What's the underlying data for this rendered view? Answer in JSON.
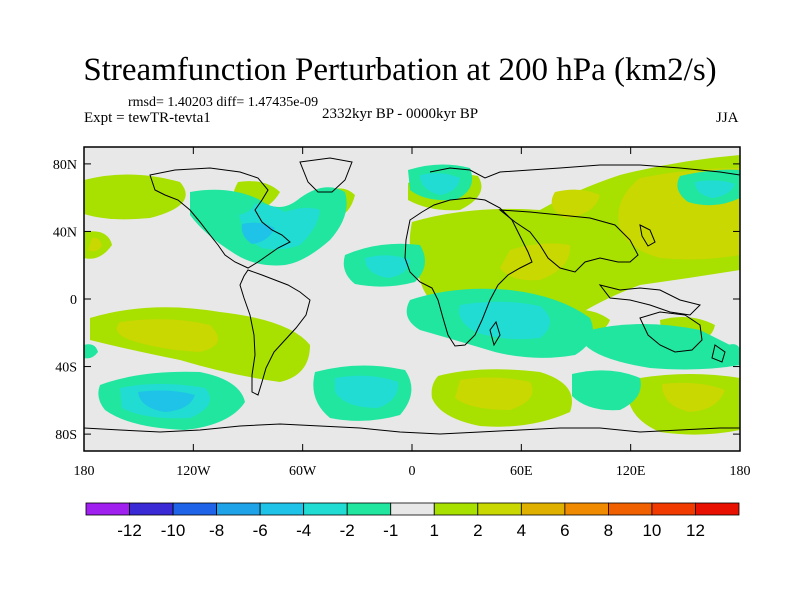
{
  "title": "Streamfunction Perturbation at 200 hPa (km2/s)",
  "stats": "rmsd= 1.40203 diff= 1.47435e-09",
  "experiment": "Expt = tewTR-tevta1",
  "period": "2332kyr BP - 0000kyr BP",
  "season": "JJA",
  "axes": {
    "lat_labels": [
      "80N",
      "40N",
      "0",
      "40S",
      "80S"
    ],
    "lat_values": [
      80,
      40,
      0,
      -40,
      -80
    ],
    "lon_labels": [
      "180",
      "120W",
      "60W",
      "0",
      "60E",
      "120E",
      "180"
    ],
    "lon_values": [
      -180,
      -120,
      -60,
      0,
      60,
      120,
      180
    ]
  },
  "colorbar": {
    "labels": [
      "-12",
      "-10",
      "-8",
      "-6",
      "-4",
      "-2",
      "-1",
      "1",
      "2",
      "4",
      "6",
      "8",
      "10",
      "12"
    ],
    "colors": [
      "#a020f0",
      "#3a2ad6",
      "#1f63e8",
      "#1fa3e8",
      "#1fc3e8",
      "#20dcd2",
      "#20e6a0",
      "#e8e8e8",
      "#a8e000",
      "#c8d800",
      "#e0b000",
      "#f08a00",
      "#f06000",
      "#f03a00",
      "#e81000"
    ]
  },
  "colors": {
    "neutral": "#e8e8e8",
    "coast": "#000000",
    "frame": "#000000"
  }
}
